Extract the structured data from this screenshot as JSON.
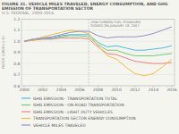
{
  "chart_data": {
    "type": "line",
    "title": "FIGURE 31. VEHICLE MILES TRAVELED, ENERGY CONSUMPTION, AND GHG EMISSION OF TRANSPORTATION SECTOR",
    "subtitle": "U.S. FEDERAL, 2000-2016",
    "annotations": [
      {
        "text": "LOW CARBON FUEL STANDARD\nSIGNED ON JANUARY 18, 2007",
        "x": 2007
      }
    ],
    "x": [
      2000,
      2001,
      2002,
      2003,
      2004,
      2005,
      2006,
      2007,
      2008,
      2009,
      2010,
      2011,
      2012,
      2013,
      2014,
      2015,
      2016
    ],
    "series": [
      {
        "name": "GHG EMISSION - TRANSPORTATION TOTAL",
        "color": "#4db8e8",
        "values": [
          1.0,
          1.02,
          1.03,
          1.03,
          1.05,
          1.06,
          1.06,
          1.06,
          0.99,
          0.95,
          0.96,
          0.94,
          0.92,
          0.92,
          0.93,
          0.94,
          0.96
        ]
      },
      {
        "name": "GHG EMISSION - ON-ROAD TRANSPORTATION",
        "color": "#70cc70",
        "values": [
          1.0,
          1.01,
          1.02,
          1.02,
          1.04,
          1.05,
          1.05,
          1.04,
          0.97,
          0.92,
          0.92,
          0.89,
          0.87,
          0.87,
          0.87,
          0.88,
          0.89
        ]
      },
      {
        "name": "GHG EMISSION - LIGHT DUTY VEHICLES",
        "color": "#f08080",
        "values": [
          1.0,
          1.01,
          1.02,
          1.02,
          1.03,
          1.03,
          1.03,
          1.02,
          0.95,
          0.89,
          0.88,
          0.85,
          0.82,
          0.81,
          0.8,
          0.8,
          0.81
        ]
      },
      {
        "name": "TRANSPORTATION SECTOR ENERGY CONSUMPTION",
        "color": "#f0c040",
        "values": [
          1.0,
          1.01,
          1.04,
          1.06,
          1.08,
          1.1,
          1.09,
          1.07,
          0.96,
          0.87,
          0.84,
          0.77,
          0.71,
          0.69,
          0.71,
          0.77,
          0.84
        ]
      },
      {
        "name": "VEHICLE MILES TRAVELED",
        "color": "#9090c8",
        "values": [
          1.0,
          1.02,
          1.03,
          1.04,
          1.06,
          1.08,
          1.09,
          1.09,
          1.05,
          1.03,
          1.04,
          1.04,
          1.04,
          1.05,
          1.07,
          1.1,
          1.13
        ]
      }
    ],
    "xlim": [
      1999.7,
      2016.3
    ],
    "xticks": [
      2000,
      2002,
      2004,
      2006,
      2008,
      2010,
      2012,
      2014,
      2016
    ],
    "ylim": [
      0.6,
      1.2
    ],
    "yticks": [
      0.6,
      0.7,
      0.8,
      0.9,
      {
        "value": 1.0,
        "label": "1.0"
      },
      1.1,
      1.2
    ],
    "ylabel": "INDEX (2000=1.0)",
    "grid": true,
    "legend": "bottom"
  }
}
